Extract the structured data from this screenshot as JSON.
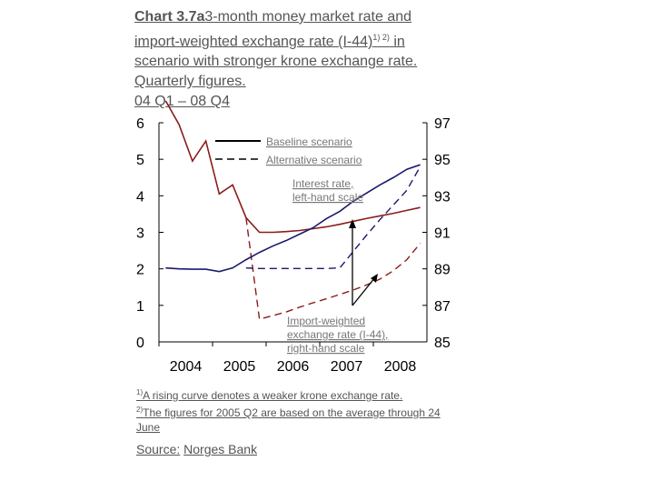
{
  "title": {
    "prefix": "Chart 3.7a",
    "line1": "3-month money market rate and",
    "line2": "import-weighted exchange rate (I-44)",
    "sup": "1) 2)",
    "line2_end": " in",
    "line3": "scenario with stronger krone exchange rate.",
    "line4": "Quarterly figures.",
    "line5": "04 Q1 – 08 Q4"
  },
  "footnotes": {
    "n1_mark": "1)",
    "n1_text": "A rising curve denotes a weaker krone exchange rate.",
    "n2_mark": "2)",
    "n2_text": "The figures for 2005 Q2 are based on the average through 24 June"
  },
  "source": {
    "label": "Source:",
    "name": "Norges Bank"
  },
  "chart_data": {
    "type": "line",
    "x_tick_labels": [
      "2004",
      "2005",
      "2006",
      "2007",
      "2008"
    ],
    "y_left_ticks": [
      "0",
      "1",
      "2",
      "3",
      "4",
      "5",
      "6"
    ],
    "y_right_ticks": [
      "85",
      "87",
      "89",
      "91",
      "93",
      "95",
      "97"
    ],
    "ylim_left": [
      0,
      6
    ],
    "ylim_right": [
      85,
      97
    ],
    "xlim": [
      2004,
      2009
    ],
    "grid": false,
    "legend": {
      "placement": "top-center",
      "entries": [
        {
          "label": "Baseline scenario",
          "style": "solid"
        },
        {
          "label": "Alternative scenario",
          "style": "dashed"
        }
      ]
    },
    "annotations": [
      {
        "line1": "Interest rate,",
        "line2": "left-hand scale"
      },
      {
        "line1": "Import-weighted",
        "line2": "exchange rate (I-44),",
        "line3": "right-hand scale"
      }
    ],
    "x": [
      2004.0,
      2004.25,
      2004.5,
      2004.75,
      2005.0,
      2005.25,
      2005.5,
      2005.75,
      2006.0,
      2006.25,
      2006.5,
      2006.75,
      2007.0,
      2007.25,
      2007.5,
      2007.75,
      2008.0,
      2008.25,
      2008.5,
      2008.75
    ],
    "series": [
      {
        "axis": "left",
        "color": "#8b1c1c",
        "style": "solid",
        "values": [
          6.6,
          5.95,
          4.95,
          5.5,
          4.05,
          4.3,
          3.4,
          3.0,
          3.0,
          3.02,
          3.05,
          3.1,
          3.15,
          3.22,
          3.3,
          3.38,
          3.45,
          3.52,
          3.6,
          3.68
        ]
      },
      {
        "axis": "left",
        "color": "#8b1c1c",
        "style": "dashed",
        "values": [
          null,
          null,
          null,
          null,
          null,
          null,
          3.4,
          0.62,
          0.72,
          0.82,
          0.95,
          1.07,
          1.18,
          1.3,
          1.42,
          1.56,
          1.72,
          1.95,
          2.25,
          2.7
        ]
      },
      {
        "axis": "right",
        "color": "#1a1a6e",
        "style": "solid",
        "values": [
          89.05,
          89.0,
          88.98,
          88.98,
          88.85,
          89.05,
          89.5,
          89.9,
          90.25,
          90.55,
          90.9,
          91.25,
          91.75,
          92.15,
          92.7,
          93.15,
          93.6,
          94.0,
          94.45,
          94.7
        ]
      },
      {
        "axis": "right",
        "color": "#1a1a6e",
        "style": "dashed",
        "values": [
          null,
          null,
          null,
          null,
          null,
          null,
          89.05,
          89.02,
          89.02,
          89.02,
          89.02,
          89.02,
          89.02,
          89.05,
          89.95,
          90.85,
          91.7,
          92.5,
          93.3,
          94.6
        ]
      }
    ]
  }
}
